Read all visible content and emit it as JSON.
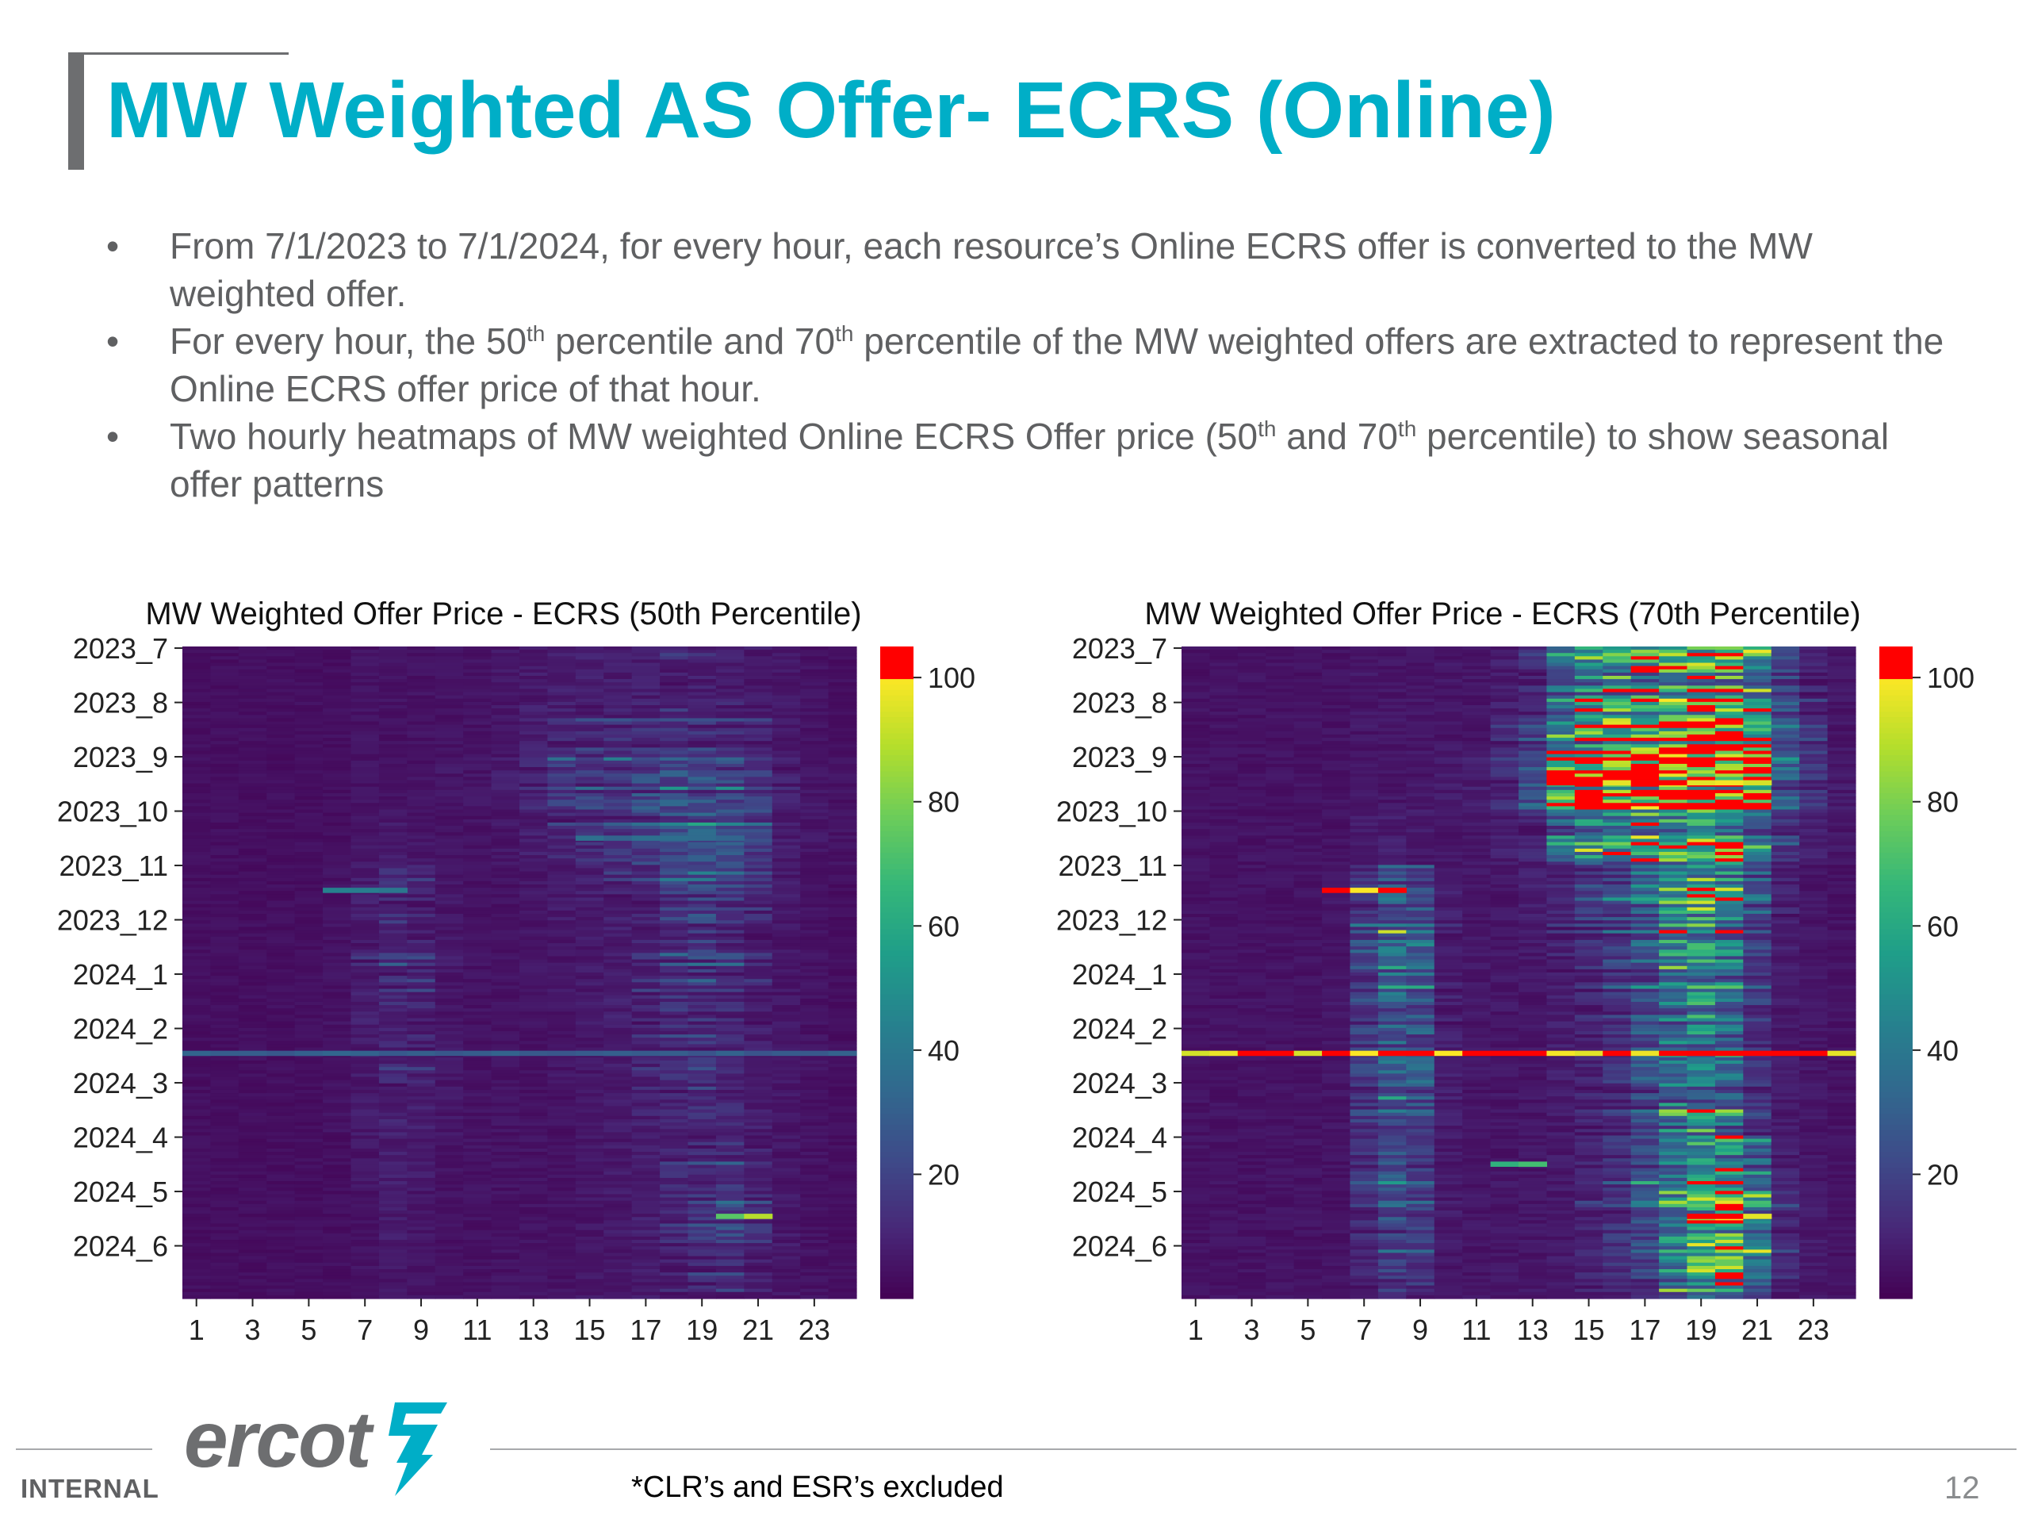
{
  "slide": {
    "title": "MW Weighted AS Offer- ECRS (Online)",
    "bullets": [
      {
        "html": "From 7/1/2023 to 7/1/2024, for every hour, each resource’s Online ECRS offer is converted to the MW weighted offer."
      },
      {
        "html": "For every hour, the 50<sup>th</sup> percentile and 70<sup>th</sup> percentile of the MW weighted offers are extracted to represent the Online ECRS offer price of that hour."
      },
      {
        "html": "Two hourly heatmaps of MW weighted Online ECRS Offer price (50<sup>th</sup> and 70<sup>th</sup> percentile) to show seasonal offer patterns"
      }
    ],
    "bullet_symbol": "•",
    "footnote": "*CLR’s and ESR’s excluded",
    "page_number": "12",
    "classification": "INTERNAL",
    "logo_text": "ercot",
    "colors": {
      "title": "#00aec7",
      "text": "#5f6062",
      "logo": "#6d6e70",
      "accent": "#6d6e70"
    }
  },
  "chart_data": [
    {
      "type": "heatmap",
      "title": "MW Weighted Offer Price - ECRS (50th Percentile)",
      "x_tick_labels": [
        "1",
        "3",
        "5",
        "7",
        "9",
        "11",
        "13",
        "15",
        "17",
        "19",
        "21",
        "23"
      ],
      "y_tick_labels": [
        "2023_7",
        "2023_8",
        "2023_9",
        "2023_10",
        "2023_11",
        "2023_12",
        "2024_1",
        "2024_2",
        "2024_3",
        "2024_4",
        "2024_5",
        "2024_6"
      ],
      "hours": 24,
      "colorbar": {
        "ticks": [
          20,
          40,
          60,
          80,
          100
        ],
        "range": [
          0,
          105
        ],
        "over_color": "#ff0000",
        "colormap": "viridis"
      },
      "monthly_hourly_values": [
        [
          4,
          4,
          4,
          4,
          4,
          4,
          5,
          5,
          5,
          5,
          5,
          6,
          7,
          8,
          8,
          8,
          8,
          9,
          9,
          8,
          7,
          6,
          5,
          4
        ],
        [
          4,
          4,
          4,
          4,
          4,
          4,
          5,
          5,
          5,
          5,
          5,
          6,
          8,
          11,
          12,
          13,
          13,
          14,
          14,
          13,
          10,
          7,
          5,
          4
        ],
        [
          4,
          4,
          4,
          4,
          4,
          4,
          5,
          5,
          5,
          6,
          6,
          8,
          11,
          16,
          18,
          20,
          22,
          24,
          24,
          22,
          16,
          9,
          6,
          5
        ],
        [
          4,
          4,
          4,
          4,
          4,
          4,
          6,
          7,
          6,
          5,
          5,
          6,
          8,
          10,
          12,
          14,
          18,
          22,
          26,
          24,
          18,
          8,
          6,
          5
        ],
        [
          4,
          4,
          4,
          4,
          4,
          5,
          8,
          12,
          10,
          6,
          5,
          5,
          6,
          7,
          8,
          9,
          12,
          18,
          22,
          20,
          14,
          7,
          5,
          4
        ],
        [
          4,
          4,
          4,
          4,
          4,
          5,
          9,
          14,
          12,
          7,
          5,
          5,
          6,
          6,
          7,
          8,
          10,
          16,
          18,
          16,
          10,
          6,
          5,
          4
        ],
        [
          4,
          4,
          4,
          4,
          4,
          5,
          8,
          12,
          10,
          6,
          5,
          5,
          5,
          6,
          7,
          8,
          10,
          14,
          16,
          14,
          9,
          6,
          5,
          4
        ],
        [
          4,
          4,
          4,
          4,
          4,
          5,
          7,
          10,
          9,
          6,
          5,
          5,
          5,
          6,
          6,
          7,
          9,
          12,
          14,
          12,
          8,
          6,
          5,
          4
        ],
        [
          4,
          4,
          4,
          4,
          4,
          5,
          7,
          9,
          8,
          6,
          5,
          5,
          5,
          5,
          6,
          7,
          9,
          11,
          12,
          11,
          8,
          6,
          5,
          4
        ],
        [
          4,
          4,
          4,
          4,
          4,
          4,
          6,
          8,
          7,
          5,
          5,
          5,
          5,
          5,
          6,
          7,
          8,
          11,
          13,
          14,
          10,
          6,
          5,
          4
        ],
        [
          4,
          4,
          4,
          4,
          4,
          4,
          5,
          7,
          6,
          5,
          5,
          5,
          5,
          5,
          6,
          7,
          8,
          12,
          16,
          22,
          14,
          7,
          5,
          4
        ],
        [
          4,
          4,
          4,
          4,
          4,
          4,
          5,
          6,
          5,
          5,
          5,
          5,
          5,
          5,
          6,
          6,
          7,
          9,
          11,
          12,
          9,
          6,
          5,
          4
        ]
      ],
      "highlights": [
        {
          "label": "2024_2",
          "hours": [
            1,
            24
          ],
          "value": 30
        },
        {
          "label": "2024_5",
          "hours": [
            20,
            21
          ],
          "value": 85
        },
        {
          "label": "2023_10",
          "hours": [
            15,
            20
          ],
          "value": 35
        },
        {
          "label": "2023_11",
          "hours": [
            6,
            8
          ],
          "value": 40
        }
      ]
    },
    {
      "type": "heatmap",
      "title": "MW Weighted Offer Price - ECRS (70th Percentile)",
      "x_tick_labels": [
        "1",
        "3",
        "5",
        "7",
        "9",
        "11",
        "13",
        "15",
        "17",
        "19",
        "21",
        "23"
      ],
      "y_tick_labels": [
        "2023_7",
        "2023_8",
        "2023_9",
        "2023_10",
        "2023_11",
        "2023_12",
        "2024_1",
        "2024_2",
        "2024_3",
        "2024_4",
        "2024_5",
        "2024_6"
      ],
      "hours": 24,
      "colorbar": {
        "ticks": [
          20,
          40,
          60,
          80,
          100
        ],
        "range": [
          0,
          105
        ],
        "over_color": "#ff0000",
        "colormap": "viridis"
      },
      "monthly_hourly_values": [
        [
          5,
          5,
          5,
          5,
          5,
          5,
          6,
          6,
          6,
          6,
          6,
          8,
          12,
          30,
          45,
          50,
          55,
          60,
          65,
          60,
          45,
          20,
          10,
          6
        ],
        [
          5,
          5,
          5,
          5,
          5,
          5,
          6,
          6,
          6,
          6,
          6,
          9,
          15,
          40,
          60,
          70,
          75,
          80,
          90,
          85,
          60,
          25,
          12,
          6
        ],
        [
          5,
          5,
          5,
          5,
          5,
          5,
          6,
          6,
          6,
          7,
          8,
          12,
          25,
          80,
          100,
          105,
          110,
          110,
          110,
          110,
          100,
          30,
          14,
          7
        ],
        [
          5,
          5,
          5,
          5,
          5,
          5,
          7,
          8,
          7,
          6,
          6,
          8,
          12,
          30,
          45,
          50,
          55,
          60,
          70,
          65,
          40,
          15,
          8,
          6
        ],
        [
          5,
          5,
          5,
          5,
          5,
          6,
          18,
          30,
          25,
          8,
          6,
          6,
          8,
          12,
          20,
          25,
          40,
          60,
          70,
          60,
          30,
          10,
          6,
          5
        ],
        [
          5,
          5,
          5,
          5,
          5,
          6,
          25,
          40,
          35,
          10,
          6,
          6,
          7,
          10,
          15,
          20,
          30,
          50,
          55,
          45,
          20,
          8,
          6,
          5
        ],
        [
          5,
          5,
          5,
          5,
          5,
          6,
          20,
          35,
          30,
          9,
          6,
          6,
          6,
          8,
          12,
          18,
          25,
          45,
          50,
          40,
          18,
          7,
          6,
          5
        ],
        [
          5,
          5,
          5,
          5,
          5,
          6,
          18,
          30,
          28,
          8,
          6,
          6,
          6,
          8,
          10,
          15,
          25,
          40,
          45,
          38,
          15,
          7,
          6,
          5
        ],
        [
          5,
          5,
          5,
          5,
          5,
          6,
          16,
          28,
          25,
          8,
          6,
          6,
          6,
          7,
          10,
          14,
          22,
          38,
          45,
          38,
          15,
          7,
          6,
          5
        ],
        [
          5,
          5,
          5,
          5,
          5,
          5,
          14,
          25,
          22,
          7,
          6,
          6,
          6,
          7,
          10,
          14,
          20,
          40,
          55,
          60,
          30,
          10,
          6,
          5
        ],
        [
          5,
          5,
          5,
          5,
          5,
          5,
          12,
          22,
          18,
          7,
          6,
          6,
          6,
          7,
          10,
          15,
          22,
          45,
          70,
          85,
          45,
          12,
          7,
          5
        ],
        [
          5,
          5,
          5,
          5,
          5,
          5,
          10,
          18,
          15,
          6,
          6,
          6,
          6,
          7,
          10,
          14,
          20,
          40,
          65,
          80,
          40,
          12,
          7,
          5
        ]
      ],
      "highlights": [
        {
          "label": "2024_2",
          "hours": [
            1,
            24
          ],
          "value": 110
        },
        {
          "label": "2023_11",
          "hours": [
            6,
            8
          ],
          "value": 110
        },
        {
          "label": "2023_9",
          "hours": [
            14,
            21
          ],
          "value": 110
        },
        {
          "label": "2024_5",
          "hours": [
            19,
            21
          ],
          "value": 110
        },
        {
          "label": "2024_4",
          "hours": [
            12,
            13
          ],
          "value": 70
        }
      ]
    }
  ]
}
